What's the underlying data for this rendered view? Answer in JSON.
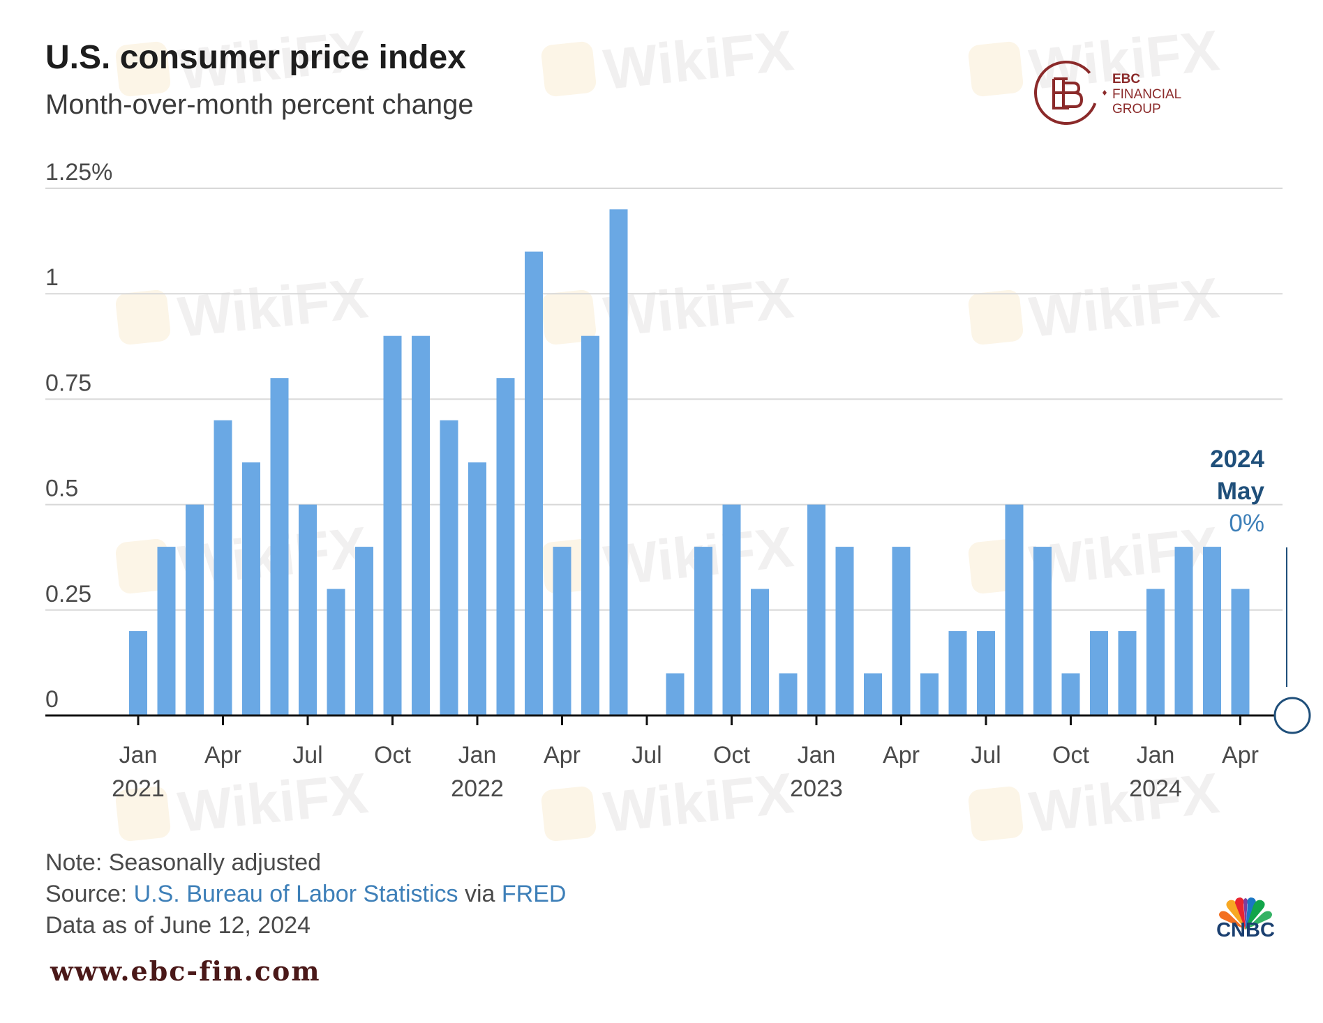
{
  "header": {
    "title": "U.S. consumer price index",
    "subtitle": "Month-over-month percent change"
  },
  "brand": {
    "ebc_line1": "EBC",
    "ebc_line2": "FINANCIAL",
    "ebc_line3": "GROUP",
    "website": "www.ebc-fin.com",
    "cnbc": "CNBC",
    "watermark": "WikiFX",
    "ebc_color": "#8b2a2a"
  },
  "chart_data": {
    "type": "bar",
    "bar_color": "#6aa8e4",
    "y_ticks": [
      {
        "value": 0,
        "label": "0"
      },
      {
        "value": 0.25,
        "label": "0.25"
      },
      {
        "value": 0.5,
        "label": "0.5"
      },
      {
        "value": 0.75,
        "label": "0.75"
      },
      {
        "value": 1,
        "label": "1"
      },
      {
        "value": 1.25,
        "label": "1.25%"
      }
    ],
    "ylim": [
      0,
      1.25
    ],
    "months": [
      "Jan 2021",
      "Feb 2021",
      "Mar 2021",
      "Apr 2021",
      "May 2021",
      "Jun 2021",
      "Jul 2021",
      "Aug 2021",
      "Sep 2021",
      "Oct 2021",
      "Nov 2021",
      "Dec 2021",
      "Jan 2022",
      "Feb 2022",
      "Mar 2022",
      "Apr 2022",
      "May 2022",
      "Jun 2022",
      "Jul 2022",
      "Aug 2022",
      "Sep 2022",
      "Oct 2022",
      "Nov 2022",
      "Dec 2022",
      "Jan 2023",
      "Feb 2023",
      "Mar 2023",
      "Apr 2023",
      "May 2023",
      "Jun 2023",
      "Jul 2023",
      "Aug 2023",
      "Sep 2023",
      "Oct 2023",
      "Nov 2023",
      "Dec 2023",
      "Jan 2024",
      "Feb 2024",
      "Mar 2024",
      "Apr 2024",
      "May 2024"
    ],
    "values": [
      0.2,
      0.4,
      0.5,
      0.7,
      0.6,
      0.8,
      0.5,
      0.3,
      0.4,
      0.9,
      0.9,
      0.7,
      0.6,
      0.8,
      1.1,
      0.4,
      0.9,
      1.2,
      0.0,
      0.1,
      0.4,
      0.5,
      0.3,
      0.1,
      0.5,
      0.4,
      0.1,
      0.4,
      0.1,
      0.2,
      0.2,
      0.5,
      0.4,
      0.1,
      0.2,
      0.2,
      0.3,
      0.4,
      0.4,
      0.3,
      0.0
    ],
    "x_ticks": [
      {
        "index": 0,
        "month": "Jan",
        "year": "2021"
      },
      {
        "index": 3,
        "month": "Apr",
        "year": ""
      },
      {
        "index": 6,
        "month": "Jul",
        "year": ""
      },
      {
        "index": 9,
        "month": "Oct",
        "year": ""
      },
      {
        "index": 12,
        "month": "Jan",
        "year": "2022"
      },
      {
        "index": 15,
        "month": "Apr",
        "year": ""
      },
      {
        "index": 18,
        "month": "Jul",
        "year": ""
      },
      {
        "index": 21,
        "month": "Oct",
        "year": ""
      },
      {
        "index": 24,
        "month": "Jan",
        "year": "2023"
      },
      {
        "index": 27,
        "month": "Apr",
        "year": ""
      },
      {
        "index": 30,
        "month": "Jul",
        "year": ""
      },
      {
        "index": 33,
        "month": "Oct",
        "year": ""
      },
      {
        "index": 36,
        "month": "Jan",
        "year": "2024"
      },
      {
        "index": 39,
        "month": "Apr",
        "year": ""
      }
    ],
    "annotation": {
      "year": "2024",
      "month": "May",
      "value_label": "0%",
      "index": 40
    }
  },
  "footer": {
    "note": "Note: Seasonally adjusted",
    "source_prefix": "Source: ",
    "source_org": "U.S. Bureau of Labor Statistics",
    "source_via": " via ",
    "source_db": "FRED",
    "data_date": "Data as of June 12, 2024"
  }
}
